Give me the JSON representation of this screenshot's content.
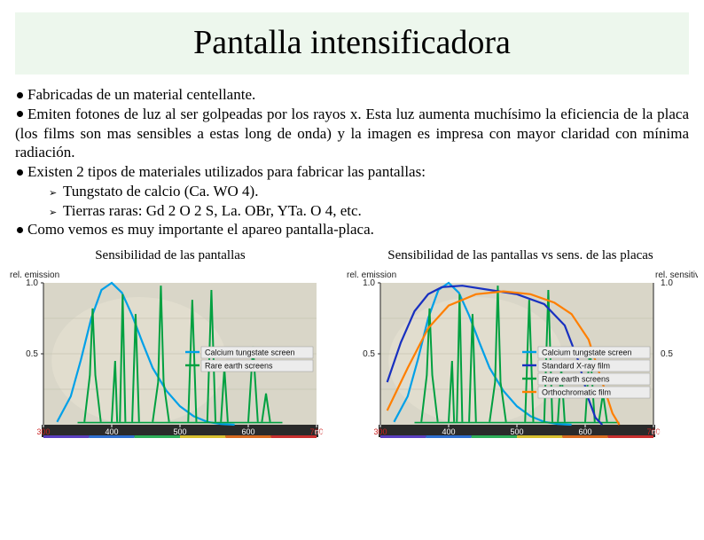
{
  "title": "Pantalla intensificadora",
  "bullets": {
    "b1": "Fabricadas de un material centellante.",
    "b2": "Emiten fotones de luz al ser golpeadas por los rayos x. Esta luz aumenta muchísimo la eficiencia de la placa (los films son mas sensibles a estas long de onda) y la imagen es impresa con mayor claridad con mínima radiación.",
    "b3": "Existen 2 tipos de materiales utilizados para fabricar las pantallas:",
    "b3a": "Tungstato de calcio (Ca. WO 4).",
    "b3b": "Tierras raras: Gd 2 O 2 S, La. OBr, YTa. O 4, etc.",
    "b4": "Como vemos es muy importante el apareo pantalla-placa."
  },
  "chart_left": {
    "caption": "Sensibilidad de las pantallas",
    "type": "line",
    "ylabel": "rel. emission",
    "ylim": [
      0,
      1.0
    ],
    "yticks": [
      0.5,
      1.0
    ],
    "xlim": [
      300,
      700
    ],
    "xticks": [
      300,
      400,
      500,
      600,
      700
    ],
    "xunit": "nm",
    "background_color": "#d9d6c8",
    "grid_color": "#bfbba8",
    "series": {
      "calcium_tungstate": {
        "color": "#00a0e8",
        "label": "Calcium tungstate screen",
        "points": [
          [
            320,
            0.02
          ],
          [
            340,
            0.2
          ],
          [
            355,
            0.46
          ],
          [
            370,
            0.75
          ],
          [
            385,
            0.95
          ],
          [
            400,
            1.0
          ],
          [
            415,
            0.93
          ],
          [
            430,
            0.77
          ],
          [
            445,
            0.58
          ],
          [
            460,
            0.4
          ],
          [
            480,
            0.24
          ],
          [
            500,
            0.13
          ],
          [
            520,
            0.06
          ],
          [
            540,
            0.02
          ],
          [
            560,
            0.005
          ],
          [
            580,
            0.0
          ]
        ]
      },
      "rare_earth": {
        "color": "#00a040",
        "label": "Rare earth screens",
        "peaks": [
          [
            [
              360,
              0.02
            ],
            [
              368,
              0.35
            ],
            [
              372,
              0.82
            ],
            [
              376,
              0.35
            ],
            [
              384,
              0.02
            ]
          ],
          [
            [
              400,
              0.02
            ],
            [
              405,
              0.45
            ],
            [
              408,
              0.02
            ]
          ],
          [
            [
              412,
              0.02
            ],
            [
              416,
              0.92
            ],
            [
              420,
              0.02
            ]
          ],
          [
            [
              430,
              0.02
            ],
            [
              435,
              0.78
            ],
            [
              440,
              0.02
            ]
          ],
          [
            [
              460,
              0.02
            ],
            [
              468,
              0.3
            ],
            [
              472,
              0.98
            ],
            [
              476,
              0.3
            ],
            [
              484,
              0.02
            ]
          ],
          [
            [
              512,
              0.02
            ],
            [
              518,
              0.88
            ],
            [
              524,
              0.02
            ]
          ],
          [
            [
              540,
              0.02
            ],
            [
              546,
              0.95
            ],
            [
              552,
              0.02
            ]
          ],
          [
            [
              560,
              0.02
            ],
            [
              565,
              0.4
            ],
            [
              570,
              0.02
            ]
          ],
          [
            [
              600,
              0.02
            ],
            [
              607,
              0.55
            ],
            [
              614,
              0.02
            ]
          ],
          [
            [
              620,
              0.02
            ],
            [
              626,
              0.22
            ],
            [
              632,
              0.02
            ]
          ]
        ]
      }
    },
    "legend_bg": "#ececec"
  },
  "chart_right": {
    "caption": "Sensibilidad de las pantallas vs sens. de las placas",
    "type": "line",
    "ylabel_left": "rel. emission",
    "ylabel_right": "rel. sensitivity",
    "ylim": [
      0,
      1.0
    ],
    "yticks": [
      0.5,
      1.0
    ],
    "xlim": [
      300,
      700
    ],
    "xticks": [
      300,
      400,
      500,
      600,
      700
    ],
    "xunit": "nm",
    "background_color": "#d9d6c8",
    "grid_color": "#bfbba8",
    "series": {
      "calcium_tungstate": {
        "color": "#00a0e8",
        "label": "Calcium tungstate screen"
      },
      "standard_xray_film": {
        "color": "#1830c0",
        "label": "Standard X-ray film",
        "points": [
          [
            310,
            0.3
          ],
          [
            330,
            0.58
          ],
          [
            350,
            0.8
          ],
          [
            370,
            0.92
          ],
          [
            390,
            0.97
          ],
          [
            420,
            0.98
          ],
          [
            460,
            0.95
          ],
          [
            500,
            0.92
          ],
          [
            540,
            0.85
          ],
          [
            570,
            0.7
          ],
          [
            590,
            0.45
          ],
          [
            605,
            0.18
          ],
          [
            615,
            0.05
          ],
          [
            625,
            0.0
          ]
        ]
      },
      "rare_earth": {
        "color": "#00a040",
        "label": "Rare earth screens"
      },
      "orthochromatic_film": {
        "color": "#ff7f00",
        "label": "Orthochromatic film",
        "points": [
          [
            310,
            0.1
          ],
          [
            340,
            0.4
          ],
          [
            370,
            0.68
          ],
          [
            400,
            0.84
          ],
          [
            440,
            0.92
          ],
          [
            480,
            0.94
          ],
          [
            520,
            0.92
          ],
          [
            555,
            0.86
          ],
          [
            580,
            0.78
          ],
          [
            605,
            0.6
          ],
          [
            625,
            0.3
          ],
          [
            640,
            0.08
          ],
          [
            650,
            0.0
          ]
        ]
      }
    },
    "legend_bg": "#ececec"
  }
}
